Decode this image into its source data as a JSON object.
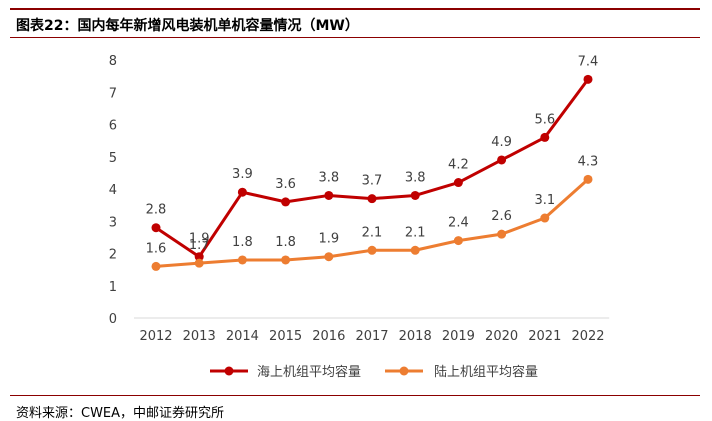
{
  "header": {
    "title": "图表22：国内每年新增风电装机单机容量情况（MW）"
  },
  "footer": {
    "source": "资料来源：CWEA，中邮证券研究所"
  },
  "colors": {
    "frame": "#8b0000",
    "offshore": "#c00000",
    "onshore": "#ed7d31",
    "axis": "#d9d9d9",
    "text": "#404040"
  },
  "chart_data": {
    "type": "line",
    "title": "图表22：国内每年新增风电装机单机容量情况（MW）",
    "xlabel": "",
    "ylabel": "",
    "categories": [
      "2012",
      "2013",
      "2014",
      "2015",
      "2016",
      "2017",
      "2018",
      "2019",
      "2020",
      "2021",
      "2022"
    ],
    "ylim": [
      0,
      8
    ],
    "yticks": [
      "0",
      "1",
      "2",
      "3",
      "4",
      "5",
      "6",
      "7",
      "8"
    ],
    "grid": false,
    "legend_position": "bottom",
    "series": [
      {
        "name": "海上机组平均容量",
        "values": [
          2.8,
          1.9,
          3.9,
          3.6,
          3.8,
          3.7,
          3.8,
          4.2,
          4.9,
          5.6,
          7.4
        ],
        "labels": [
          "2.8",
          "1.9",
          "3.9",
          "3.6",
          "3.8",
          "3.7",
          "3.8",
          "4.2",
          "4.9",
          "5.6",
          "7.4"
        ],
        "color": "#c00000"
      },
      {
        "name": "陆上机组平均容量",
        "values": [
          1.6,
          1.7,
          1.8,
          1.8,
          1.9,
          2.1,
          2.1,
          2.4,
          2.6,
          3.1,
          4.3
        ],
        "labels": [
          "1.6",
          "1.7",
          "1.8",
          "1.8",
          "1.9",
          "2.1",
          "2.1",
          "2.4",
          "2.6",
          "3.1",
          "4.3"
        ],
        "color": "#ed7d31"
      }
    ]
  }
}
